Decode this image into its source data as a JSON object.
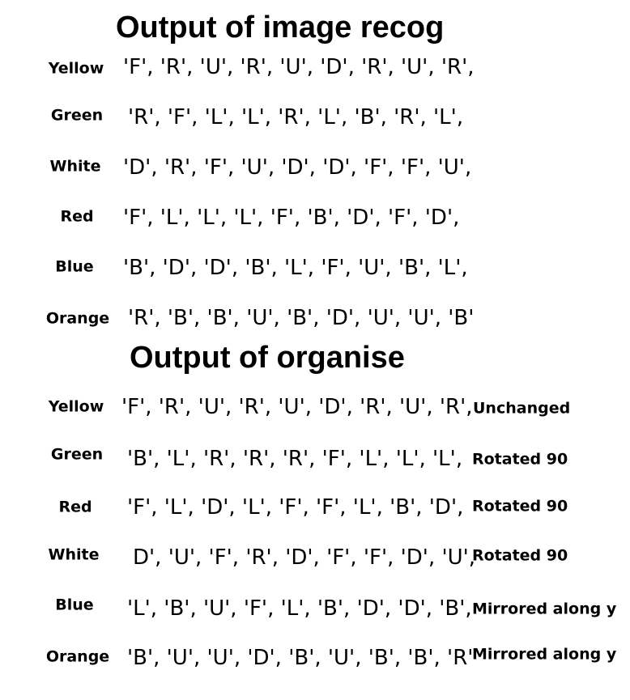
{
  "section1": {
    "title": "Output of image recog",
    "rows": [
      {
        "color": "Yellow",
        "values": "'F', 'R', 'U', 'R', 'U', 'D', 'R', 'U', 'R',"
      },
      {
        "color": "Green",
        "values": "'R', 'F', 'L', 'L', 'R', 'L', 'B', 'R', 'L',"
      },
      {
        "color": "White",
        "values": "'D', 'R', 'F', 'U', 'D', 'D', 'F', 'F', 'U',"
      },
      {
        "color": "Red",
        "values": "'F', 'L', 'L', 'L', 'F', 'B', 'D', 'F', 'D',"
      },
      {
        "color": "Blue",
        "values": "'B', 'D', 'D', 'B', 'L', 'F', 'U', 'B', 'L',"
      },
      {
        "color": "Orange",
        "values": "'R', 'B', 'B', 'U', 'B', 'D', 'U', 'U', 'B'"
      }
    ]
  },
  "section2": {
    "title": "Output of organise",
    "rows": [
      {
        "color": "Yellow",
        "values": "'F', 'R', 'U', 'R', 'U', 'D', 'R', 'U', 'R',",
        "note": "Unchanged"
      },
      {
        "color": "Green",
        "values": "'B', 'L', 'R', 'R', 'R', 'F', 'L', 'L', 'L',",
        "note": "Rotated 90"
      },
      {
        "color": "Red",
        "values": "'F', 'L', 'D', 'L', 'F', 'F', 'L', 'B', 'D',",
        "note": "Rotated 90"
      },
      {
        "color": "White",
        "values": "D', 'U', 'F', 'R', 'D', 'F', 'F', 'D', 'U',",
        "note": "Rotated 90"
      },
      {
        "color": "Blue",
        "values": "'L', 'B', 'U', 'F', 'L', 'B', 'D', 'D', 'B',",
        "note": "Mirrored along y"
      },
      {
        "color": "Orange",
        "values": "'B', 'U', 'U', 'D', 'B', 'U', 'B', 'B', 'R'",
        "note": "Mirrored along y"
      }
    ]
  }
}
